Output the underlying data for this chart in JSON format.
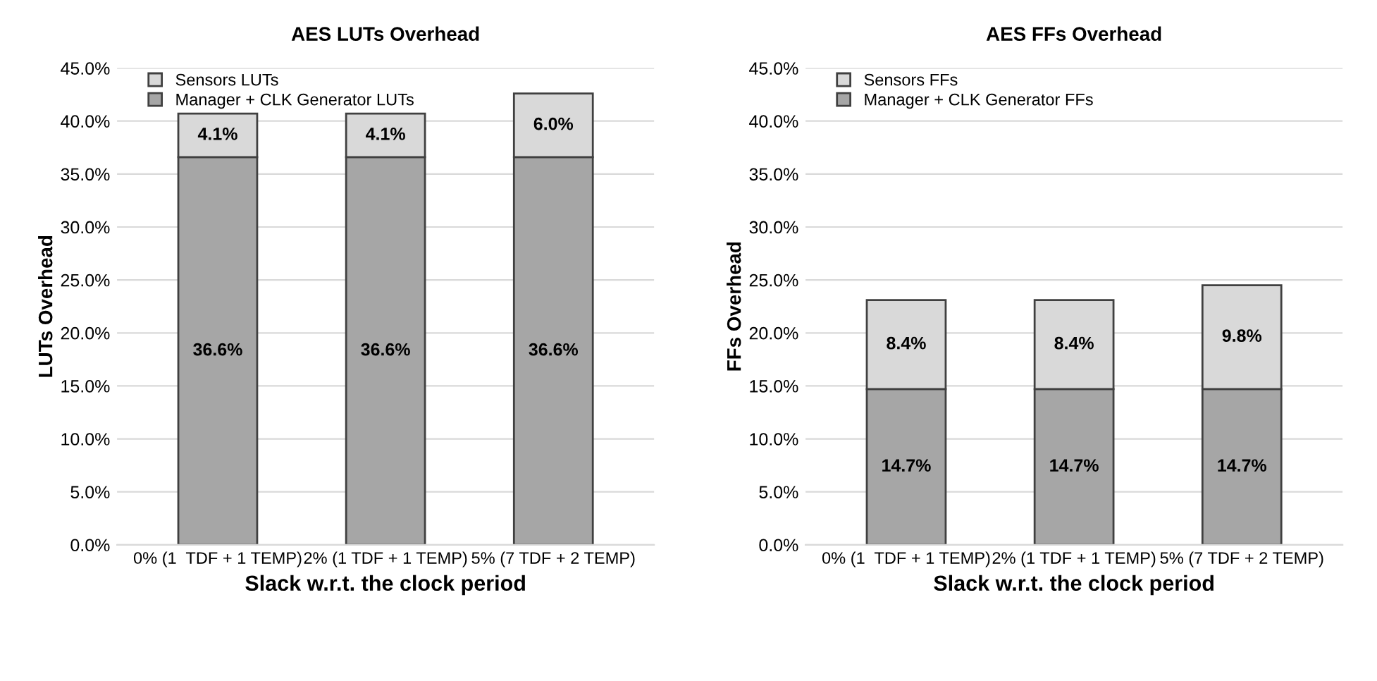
{
  "chart_data": [
    {
      "type": "bar",
      "stacked": true,
      "title": "AES LUTs Overhead",
      "xlabel": "Slack w.r.t. the clock period",
      "ylabel": "LUTs Overhead",
      "categories": [
        "0% (1  TDF + 1 TEMP)",
        "2% (1 TDF + 1 TEMP)",
        "5% (7 TDF + 2 TEMP)"
      ],
      "series": [
        {
          "name": "Manager + CLK Generator LUTs",
          "color": "#a6a6a6",
          "values": [
            36.6,
            36.6,
            36.6
          ],
          "value_labels": [
            "36.6%",
            "36.6%",
            "36.6%"
          ]
        },
        {
          "name": "Sensors LUTs",
          "color": "#d9d9d9",
          "values": [
            4.1,
            4.1,
            6.0
          ],
          "value_labels": [
            "4.1%",
            "4.1%",
            "6.0%"
          ]
        }
      ],
      "ylim": [
        0,
        45
      ],
      "yticks": [
        {
          "value": 0,
          "label": "0.0%"
        },
        {
          "value": 5,
          "label": "5.0%"
        },
        {
          "value": 10,
          "label": "10.0%"
        },
        {
          "value": 15,
          "label": "15.0%"
        },
        {
          "value": 20,
          "label": "20.0%"
        },
        {
          "value": 25,
          "label": "25.0%"
        },
        {
          "value": 30,
          "label": "30.0%"
        },
        {
          "value": 35,
          "label": "35.0%"
        },
        {
          "value": 40,
          "label": "40.0%"
        },
        {
          "value": 45,
          "label": "45.0%"
        }
      ],
      "grid": "y",
      "legend": "top left"
    },
    {
      "type": "bar",
      "stacked": true,
      "title": "AES FFs Overhead",
      "xlabel": "Slack w.r.t. the clock period",
      "ylabel": "FFs Overhead",
      "categories": [
        "0% (1  TDF + 1 TEMP)",
        "2% (1 TDF + 1 TEMP)",
        "5% (7 TDF + 2 TEMP)"
      ],
      "series": [
        {
          "name": "Manager + CLK Generator FFs",
          "color": "#a6a6a6",
          "values": [
            14.7,
            14.7,
            14.7
          ],
          "value_labels": [
            "14.7%",
            "14.7%",
            "14.7%"
          ]
        },
        {
          "name": "Sensors FFs",
          "color": "#d9d9d9",
          "values": [
            8.4,
            8.4,
            9.8
          ],
          "value_labels": [
            "8.4%",
            "8.4%",
            "9.8%"
          ]
        }
      ],
      "ylim": [
        0,
        45
      ],
      "yticks": [
        {
          "value": 0,
          "label": "0.0%"
        },
        {
          "value": 5,
          "label": "5.0%"
        },
        {
          "value": 10,
          "label": "10.0%"
        },
        {
          "value": 15,
          "label": "15.0%"
        },
        {
          "value": 20,
          "label": "20.0%"
        },
        {
          "value": 25,
          "label": "25.0%"
        },
        {
          "value": 30,
          "label": "30.0%"
        },
        {
          "value": 35,
          "label": "35.0%"
        },
        {
          "value": 40,
          "label": "40.0%"
        },
        {
          "value": 45,
          "label": "45.0%"
        }
      ],
      "grid": "y",
      "legend": "top left"
    }
  ]
}
